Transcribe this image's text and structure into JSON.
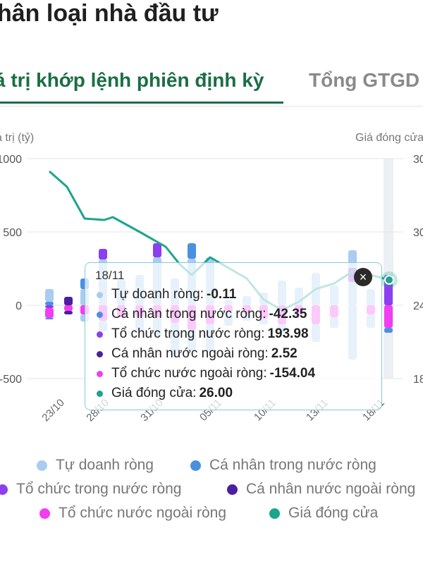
{
  "page_title": "hân loại nhà đầu tư",
  "tabs": [
    {
      "label": "á trị khớp lệnh phiên định kỳ"
    },
    {
      "label": "Tổng GTGD"
    }
  ],
  "chart_data": {
    "type": "bar",
    "y_axis_left_title": "á trị (tỷ)",
    "y_axis_right_title": "Giá đóng cửa",
    "ylim": [
      -500,
      1000
    ],
    "yticks": [
      "1000",
      "500",
      "0",
      "-500"
    ],
    "right_ticks": [
      "30",
      "30",
      "24",
      "18"
    ],
    "x_tick_labels": [
      "23/10",
      "28/10",
      "31/10",
      "05/11",
      "10/11",
      "13/11",
      "18/11"
    ],
    "series": [
      {
        "name": "Tự doanh ròng",
        "color": "#a9ccf0"
      },
      {
        "name": "Cá nhân trong nước ròng",
        "color": "#4a90e2"
      },
      {
        "name": "Tổ chức trong nước ròng",
        "color": "#8b3ff0"
      },
      {
        "name": "Cá nhân nước ngoài ròng",
        "color": "#4b1fa0"
      },
      {
        "name": "Tổ chức nước ngoài ròng",
        "color": "#f23df0"
      },
      {
        "name": "Giá đóng cửa",
        "color": "#1aa58c"
      }
    ],
    "grid": true,
    "legend_position": "bottom"
  },
  "tooltip": {
    "date": "18/11",
    "rows": [
      {
        "label": "Tự doanh ròng:",
        "value": "-0.11",
        "color": "#a9ccf0"
      },
      {
        "label": "Cá nhân trong nước ròng:",
        "value": "-42.35",
        "color": "#4a90e2"
      },
      {
        "label": "Tổ chức trong nước ròng:",
        "value": "193.98",
        "color": "#8b3ff0"
      },
      {
        "label": "Cá nhân nước ngoài ròng:",
        "value": "2.52",
        "color": "#4b1fa0"
      },
      {
        "label": "Tổ chức nước ngoài ròng:",
        "value": "-154.04",
        "color": "#f23df0"
      },
      {
        "label": "Giá đóng cửa:",
        "value": "26.00",
        "color": "#1aa58c"
      }
    ],
    "close_symbol": "×"
  },
  "legend": [
    {
      "label": "Tự doanh ròng",
      "color": "#a9ccf0"
    },
    {
      "label": "Cá nhân trong nước ròng",
      "color": "#4a90e2"
    },
    {
      "label": "Tổ chức trong nước ròng",
      "color": "#8b3ff0"
    },
    {
      "label": "Cá nhân nước ngoài ròng",
      "color": "#4b1fa0"
    },
    {
      "label": "Tổ chức nước ngoài ròng",
      "color": "#f23df0"
    },
    {
      "label": "Giá đóng cửa",
      "color": "#1aa58c"
    }
  ]
}
